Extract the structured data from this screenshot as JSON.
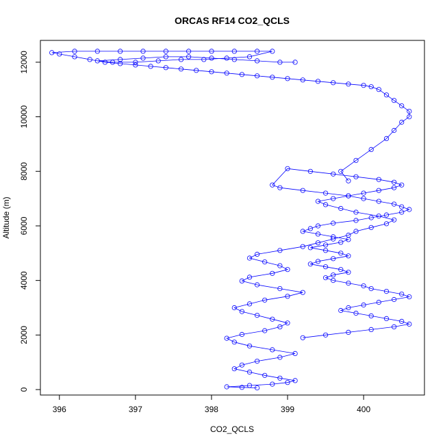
{
  "chart_data": {
    "type": "scatter",
    "title": "ORCAS RF14 CO2_QCLS",
    "xlabel": "CO2_QCLS",
    "ylabel": "Altitude (m)",
    "xlim": [
      395.75,
      400.8
    ],
    "ylim": [
      -200,
      12800
    ],
    "x_ticks": [
      396,
      397,
      398,
      399,
      400
    ],
    "y_ticks": [
      0,
      2000,
      4000,
      6000,
      8000,
      10000,
      12000
    ],
    "grid": false,
    "legend": "none",
    "color": "#0000ff",
    "series": [
      {
        "x": [
          398.6,
          398.4,
          398.2,
          398.5,
          398.8,
          399.0,
          399.1,
          398.9,
          398.7,
          398.5,
          398.3,
          398.4,
          398.6,
          398.9,
          399.1,
          398.8,
          398.5,
          398.3,
          398.2,
          398.4,
          398.7,
          398.9,
          399.0,
          398.8,
          398.6,
          398.4,
          398.3,
          398.5,
          398.7,
          399.0,
          399.2,
          398.9,
          398.6,
          398.4,
          398.5,
          398.8,
          399.0,
          398.9,
          398.7,
          398.5,
          398.6,
          398.9,
          399.2,
          399.4,
          399.6,
          399.8,
          399.9,
          400.1,
          400.3,
          400.4,
          400.2,
          399.9,
          399.7,
          399.5,
          399.4,
          399.6,
          399.8,
          400.0,
          400.2,
          400.4,
          400.5,
          400.4,
          400.2,
          399.9,
          399.6,
          399.3,
          399.0,
          398.8,
          398.9,
          399.2,
          399.5,
          399.8,
          400.0,
          400.2,
          400.4,
          400.5,
          400.6,
          400.5,
          400.3,
          400.1,
          399.9,
          399.6,
          399.4,
          399.3,
          399.2,
          399.4,
          399.6,
          399.8,
          399.7,
          399.5,
          399.3,
          399.5,
          399.7,
          399.8,
          399.6,
          399.4,
          399.3,
          399.5,
          399.7,
          399.8,
          399.6,
          399.5,
          399.6,
          399.8,
          400.0,
          400.1,
          400.3,
          400.5,
          400.6,
          400.4,
          400.2,
          400.0,
          399.8,
          399.7,
          399.9,
          400.1,
          400.3,
          400.5,
          400.6,
          400.4,
          400.1,
          399.8,
          399.5,
          399.2
        ],
        "y": [
          60,
          80,
          100,
          150,
          200,
          260,
          330,
          420,
          520,
          640,
          760,
          900,
          1040,
          1180,
          1320,
          1460,
          1600,
          1740,
          1880,
          2020,
          2160,
          2300,
          2440,
          2580,
          2720,
          2860,
          3000,
          3140,
          3280,
          3420,
          3560,
          3700,
          3840,
          3980,
          4120,
          4260,
          4400,
          4540,
          4680,
          4820,
          4960,
          5100,
          5240,
          5380,
          5520,
          5660,
          5800,
          5940,
          6080,
          6220,
          6360,
          6500,
          6640,
          6780,
          6900,
          7000,
          7100,
          7200,
          7300,
          7400,
          7500,
          7600,
          7700,
          7800,
          7900,
          8000,
          8100,
          7500,
          7400,
          7300,
          7200,
          7100,
          7000,
          6900,
          6800,
          6700,
          6600,
          6500,
          6400,
          6300,
          6200,
          6100,
          6000,
          5900,
          5800,
          5700,
          5600,
          5500,
          5400,
          5300,
          5200,
          5100,
          5000,
          4900,
          4800,
          4700,
          4600,
          4500,
          4400,
          4300,
          4200,
          4100,
          4000,
          3900,
          3800,
          3700,
          3600,
          3500,
          3400,
          3300,
          3200,
          3100,
          3000,
          2900,
          2800,
          2700,
          2600,
          2500,
          2400,
          2300,
          2200,
          2100,
          2000,
          1900
        ]
      },
      {
        "x": [
          399.8,
          399.7,
          399.9,
          400.1,
          400.3,
          400.4,
          400.5,
          400.6,
          400.6,
          400.5,
          400.4,
          400.3,
          400.2,
          400.1,
          400.0,
          399.8,
          399.6,
          399.4,
          399.2,
          399.0,
          398.8,
          398.6,
          398.4,
          398.2,
          398.0,
          397.8,
          397.6,
          397.4,
          397.2,
          397.0,
          396.8,
          396.6,
          396.4,
          396.2,
          396.0,
          395.9,
          396.2,
          396.5,
          396.8,
          397.1,
          397.4,
          397.7,
          398.0,
          398.3,
          398.6,
          398.8,
          398.5,
          398.2,
          397.9,
          397.6,
          397.3,
          397.0,
          396.7,
          396.5,
          396.8,
          397.1,
          397.4,
          397.7,
          398.0,
          398.3,
          398.6,
          398.9,
          399.1
        ],
        "y": [
          7650,
          8000,
          8400,
          8800,
          9200,
          9500,
          9800,
          10000,
          10200,
          10400,
          10600,
          10800,
          11000,
          11100,
          11150,
          11200,
          11250,
          11300,
          11350,
          11400,
          11450,
          11500,
          11550,
          11600,
          11650,
          11700,
          11750,
          11800,
          11850,
          11900,
          11950,
          12000,
          12100,
          12200,
          12300,
          12350,
          12400,
          12400,
          12400,
          12400,
          12400,
          12400,
          12400,
          12400,
          12400,
          12400,
          12200,
          12150,
          12100,
          12100,
          12050,
          12000,
          12000,
          12050,
          12100,
          12150,
          12200,
          12200,
          12150,
          12100,
          12050,
          12000,
          12000
        ]
      }
    ]
  }
}
